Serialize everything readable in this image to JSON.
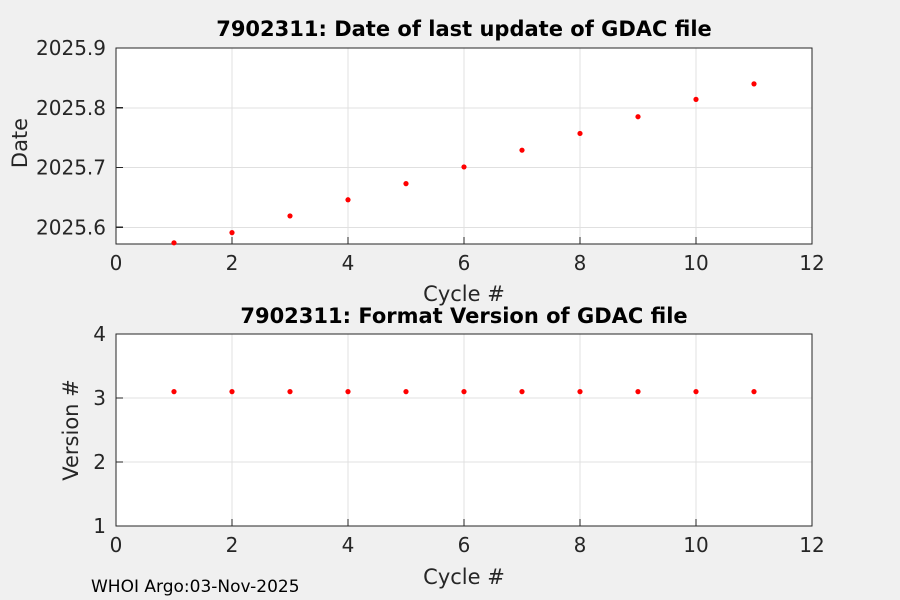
{
  "figure": {
    "footer": "WHOI Argo:03-Nov-2025"
  },
  "colors": {
    "figure_bg": "#f0f0f0",
    "axes_bg": "#ffffff",
    "grid": "#e0e0e0",
    "axis": "#262626",
    "marker": "#ff0000"
  },
  "chart_data": [
    {
      "type": "scatter",
      "title": "7902311: Date of last update of GDAC file",
      "xlabel": "Cycle #",
      "ylabel": "Date",
      "xlim": [
        0,
        12
      ],
      "ylim": [
        2025.572,
        2025.9
      ],
      "xticks": [
        0,
        2,
        4,
        6,
        8,
        10,
        12
      ],
      "xtick_labels": [
        "0",
        "2",
        "4",
        "6",
        "8",
        "10",
        "12"
      ],
      "yticks": [
        2025.6,
        2025.7,
        2025.8,
        2025.9
      ],
      "ytick_labels": [
        "2025.6",
        "2025.7",
        "2025.8",
        "2025.9"
      ],
      "grid": true,
      "legend": "none",
      "marker": "dot",
      "x": [
        1,
        2,
        3,
        4,
        5,
        6,
        7,
        8,
        9,
        10,
        11
      ],
      "y": [
        2025.574,
        2025.591,
        2025.619,
        2025.646,
        2025.673,
        2025.701,
        2025.729,
        2025.757,
        2025.785,
        2025.814,
        2025.84
      ]
    },
    {
      "type": "scatter",
      "title": "7902311: Format Version of GDAC file",
      "xlabel": "Cycle #",
      "ylabel": "Version #",
      "xlim": [
        0,
        12
      ],
      "ylim": [
        1,
        4
      ],
      "xticks": [
        0,
        2,
        4,
        6,
        8,
        10,
        12
      ],
      "xtick_labels": [
        "0",
        "2",
        "4",
        "6",
        "8",
        "10",
        "12"
      ],
      "yticks": [
        1,
        2,
        3,
        4
      ],
      "ytick_labels": [
        "1",
        "2",
        "3",
        "4"
      ],
      "grid": true,
      "legend": "none",
      "marker": "dot",
      "x": [
        1,
        2,
        3,
        4,
        5,
        6,
        7,
        8,
        9,
        10,
        11
      ],
      "y": [
        3.1,
        3.1,
        3.1,
        3.1,
        3.1,
        3.1,
        3.1,
        3.1,
        3.1,
        3.1,
        3.1
      ]
    }
  ]
}
